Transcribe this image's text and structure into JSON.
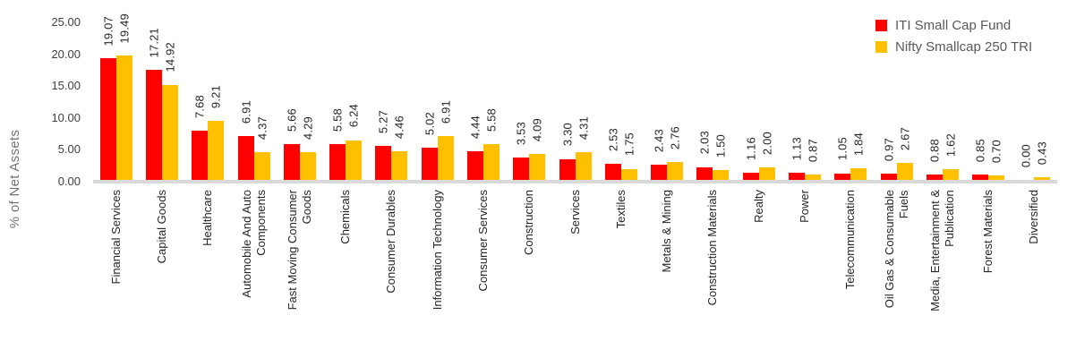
{
  "chart_data": {
    "type": "bar",
    "title": "",
    "xlabel": "",
    "ylabel": "% of Net Assets",
    "ylim": [
      0,
      25
    ],
    "yticks": [
      0,
      5,
      10,
      15,
      20,
      25
    ],
    "ytick_format": "two-decimals",
    "grid": false,
    "legend_position": "top-right",
    "data_labels": "rotated-90-above-bars",
    "category_label_rotation": 90,
    "categories": [
      "Financial Services",
      "Capital Goods",
      "Healthcare",
      "Automobile And Auto\nComponents",
      "Fast Moving Consumer\nGoods",
      "Chemicals",
      "Consumer Durables",
      "Information Technology",
      "Consumer Services",
      "Construction",
      "Services",
      "Textiles",
      "Metals & Mining",
      "Construction Materials",
      "Realty",
      "Power",
      "Telecommunication",
      "Oil Gas & Consumable\nFuels",
      "Media, Entertainment &\nPublication",
      "Forest Materials",
      "Diversified"
    ],
    "series": [
      {
        "name": "ITI Small Cap Fund",
        "color": "#FF0000",
        "values": [
          19.07,
          17.21,
          7.68,
          6.91,
          5.66,
          5.58,
          5.27,
          5.02,
          4.44,
          3.53,
          3.3,
          2.53,
          2.43,
          2.03,
          1.16,
          1.13,
          1.05,
          0.97,
          0.88,
          0.85,
          0.0
        ]
      },
      {
        "name": "Nifty Smallcap 250 TRI",
        "color": "#FFC000",
        "values": [
          19.49,
          14.92,
          9.21,
          4.37,
          4.29,
          6.24,
          4.46,
          6.91,
          5.58,
          4.09,
          4.31,
          1.75,
          2.76,
          1.5,
          2.0,
          0.87,
          1.84,
          2.67,
          1.62,
          0.7,
          0.43
        ]
      }
    ]
  },
  "colors": {
    "background": "#FFFFFF",
    "axis_line": "#D9D9D9",
    "tick_text": "#404040",
    "data_label_text": "#262626",
    "category_text": "#262626",
    "legend_text": "#595959",
    "y_title_text": "#737373"
  }
}
